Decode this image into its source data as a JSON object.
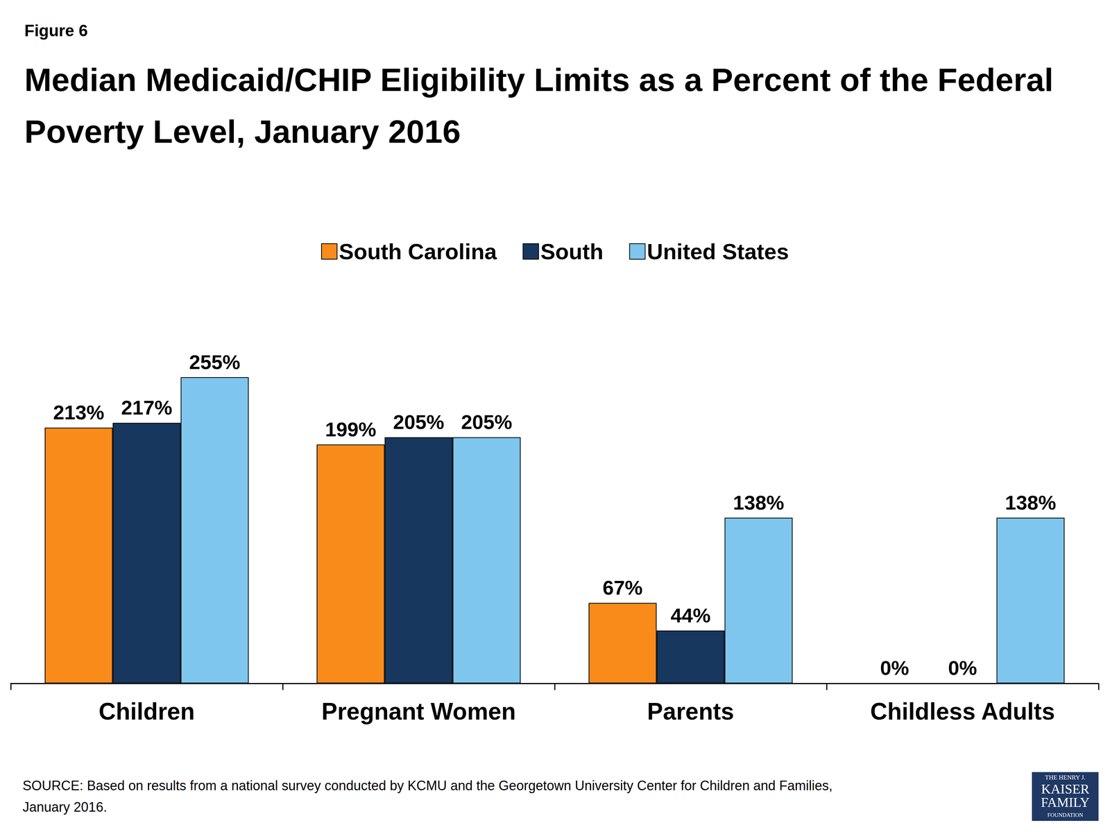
{
  "chart_data": {
    "type": "bar",
    "figure_label": "Figure 6",
    "title": "Median Medicaid/CHIP Eligibility Limits as a Percent of the Federal Poverty Level, January 2016",
    "categories": [
      "Children",
      "Pregnant Women",
      "Parents",
      "Childless Adults"
    ],
    "series": [
      {
        "name": "South Carolina",
        "color": "#f98b1b",
        "values": [
          213,
          199,
          67,
          0
        ],
        "value_labels": [
          "213%",
          "199%",
          "67%",
          "0%"
        ]
      },
      {
        "name": "South",
        "color": "#17375e",
        "values": [
          217,
          205,
          44,
          0
        ],
        "value_labels": [
          "217%",
          "205%",
          "44%",
          "0%"
        ]
      },
      {
        "name": "United States",
        "color": "#7fc6ee",
        "values": [
          255,
          205,
          138,
          138
        ],
        "value_labels": [
          "255%",
          "205%",
          "138%",
          "138%"
        ]
      }
    ],
    "ylim": [
      0,
      300
    ],
    "grid": false,
    "legend": "top",
    "data_labels": true,
    "tick_labels": "x",
    "source": "SOURCE: Based on results from a national survey conducted by KCMU and the Georgetown University Center for Children and Families, January 2016.",
    "logo": [
      "THE HENRY J.",
      "KAISER",
      "FAMILY",
      "FOUNDATION"
    ]
  }
}
